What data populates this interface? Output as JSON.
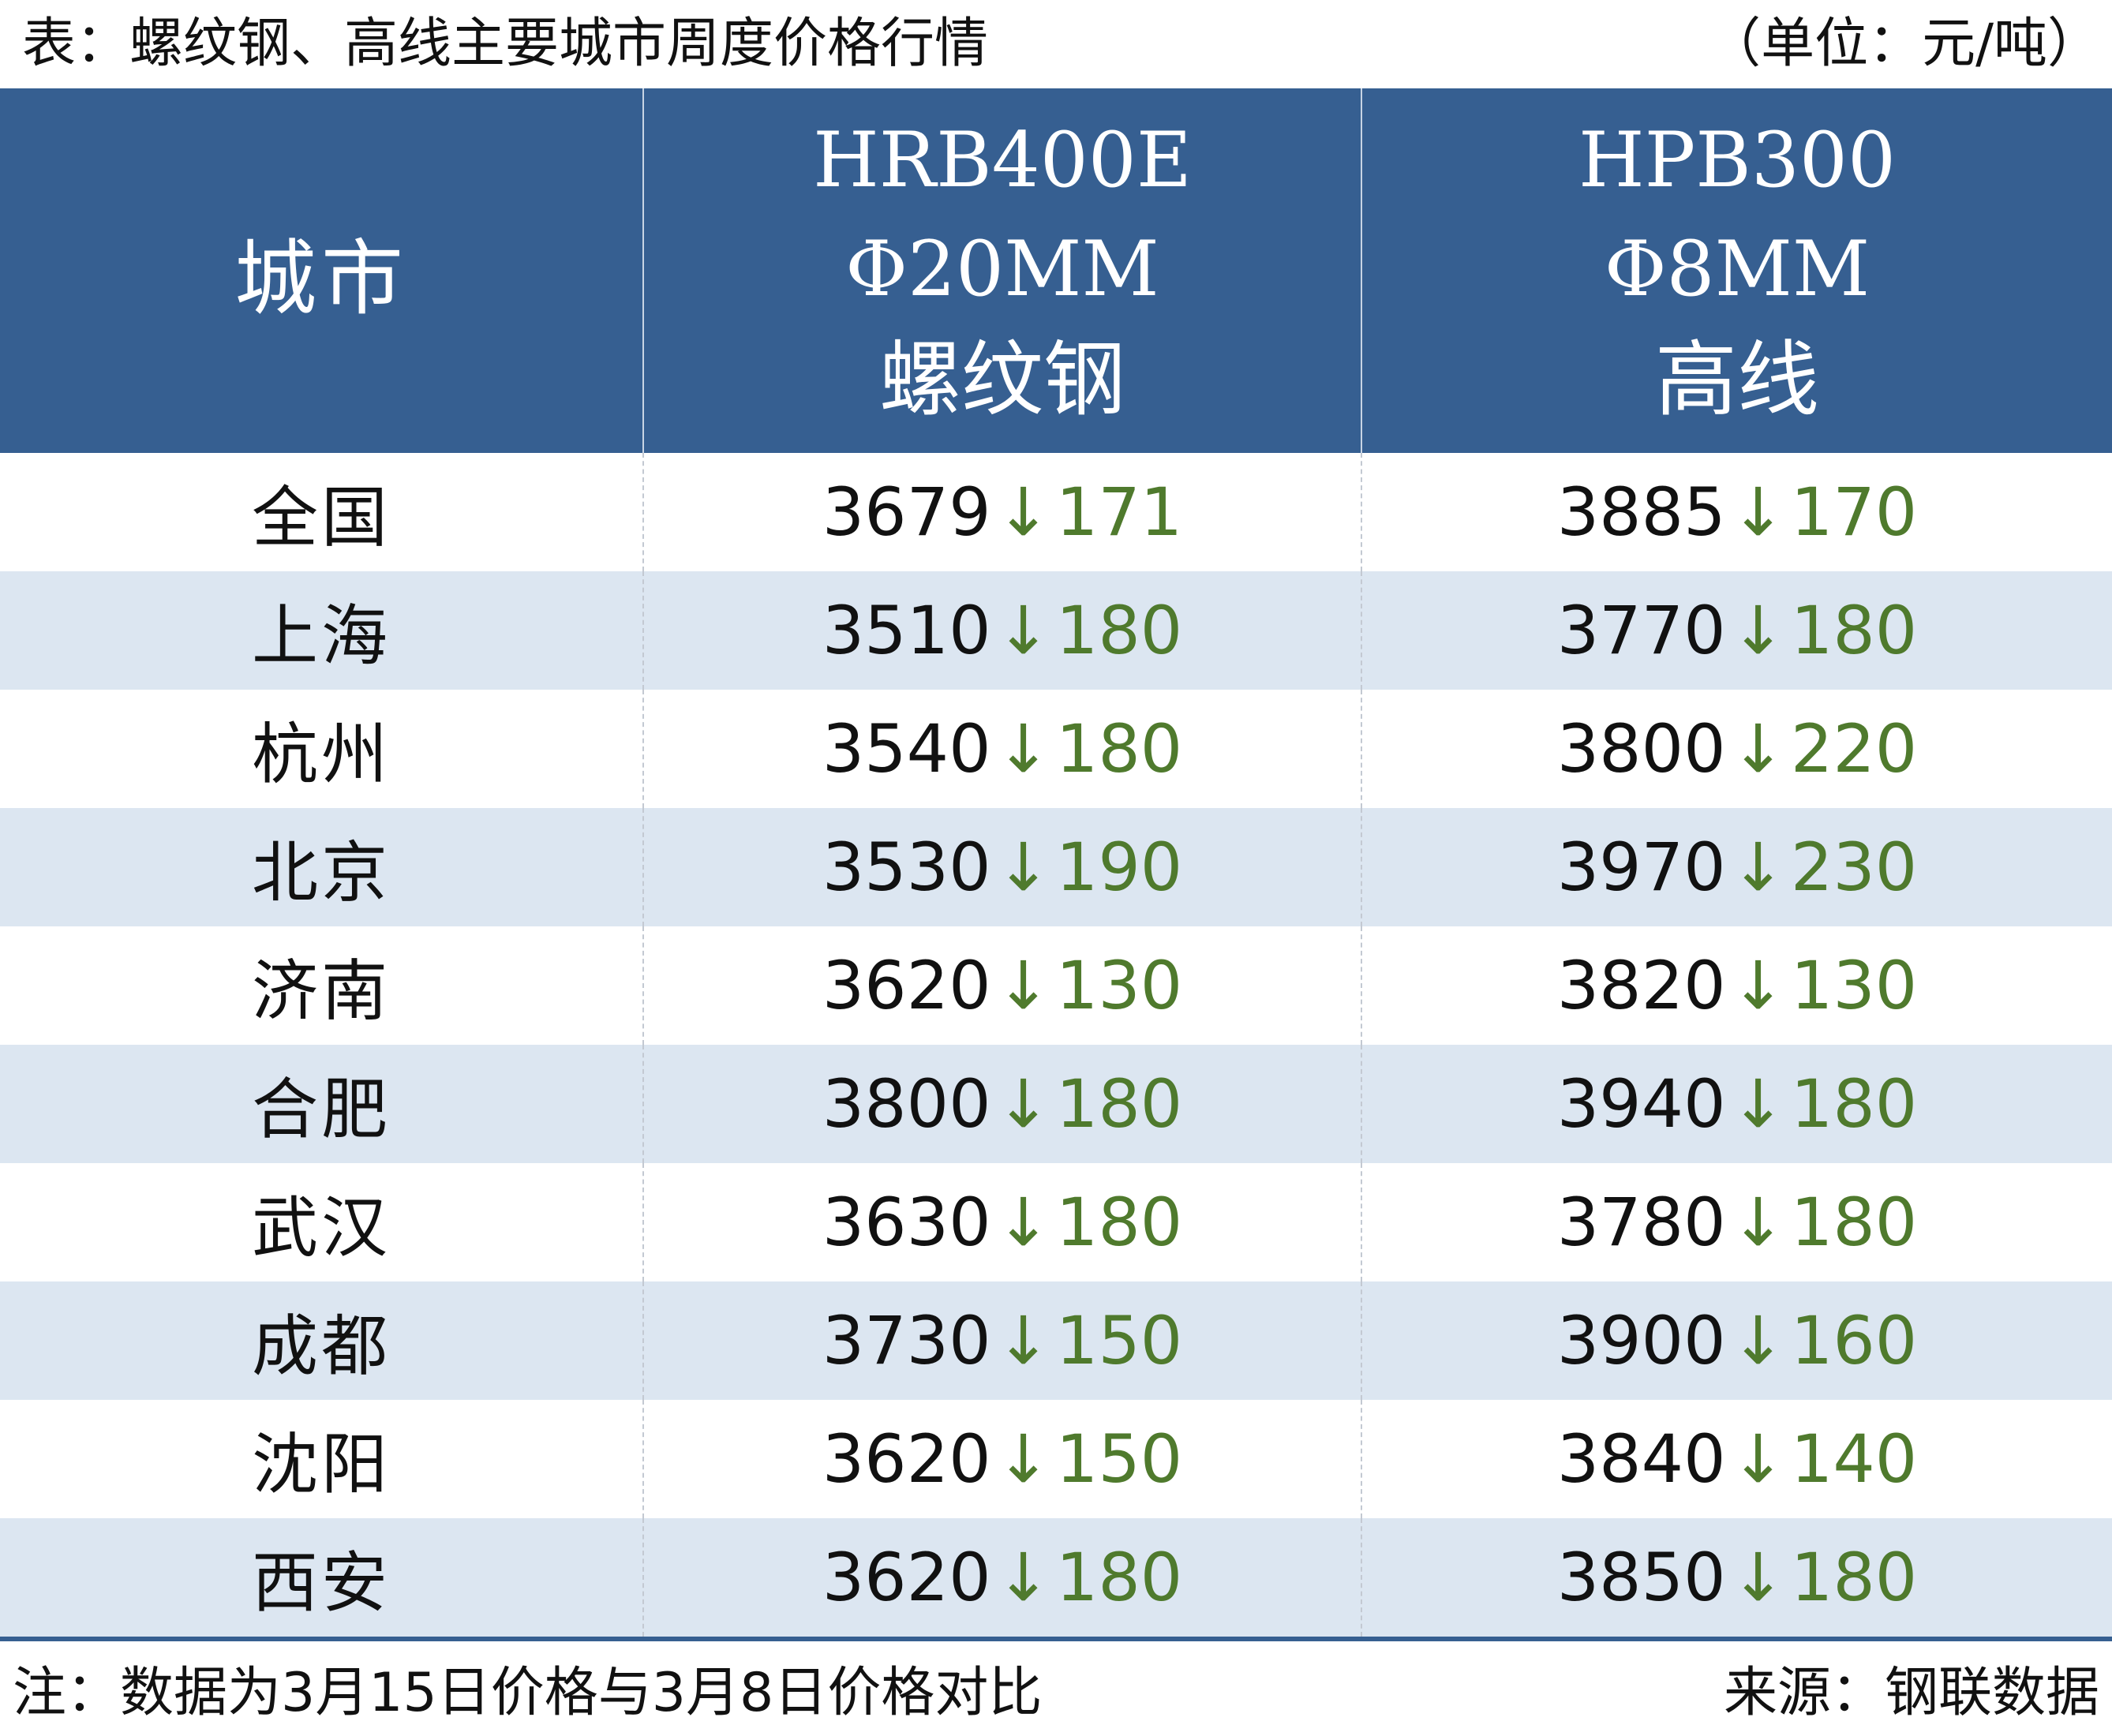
{
  "header": {
    "title": "表：螺纹钢、高线主要城市周度价格行情",
    "unit": "（单位：元/吨）"
  },
  "table": {
    "columns": {
      "city": "城市",
      "rebar": {
        "line1": "HRB400E",
        "line2": "Φ20MM",
        "line3": "螺纹钢"
      },
      "wire": {
        "line1": "HPB300",
        "line2": "Φ8MM",
        "line3": "高线"
      }
    },
    "arrow": "↓",
    "rows": [
      {
        "city": "全国",
        "rebar_price": "3679",
        "rebar_change": "171",
        "wire_price": "3885",
        "wire_change": "170"
      },
      {
        "city": "上海",
        "rebar_price": "3510",
        "rebar_change": "180",
        "wire_price": "3770",
        "wire_change": "180"
      },
      {
        "city": "杭州",
        "rebar_price": "3540",
        "rebar_change": "180",
        "wire_price": "3800",
        "wire_change": "220"
      },
      {
        "city": "北京",
        "rebar_price": "3530",
        "rebar_change": "190",
        "wire_price": "3970",
        "wire_change": "230"
      },
      {
        "city": "济南",
        "rebar_price": "3620",
        "rebar_change": "130",
        "wire_price": "3820",
        "wire_change": "130"
      },
      {
        "city": "合肥",
        "rebar_price": "3800",
        "rebar_change": "180",
        "wire_price": "3940",
        "wire_change": "180"
      },
      {
        "city": "武汉",
        "rebar_price": "3630",
        "rebar_change": "180",
        "wire_price": "3780",
        "wire_change": "180"
      },
      {
        "city": "成都",
        "rebar_price": "3730",
        "rebar_change": "150",
        "wire_price": "3900",
        "wire_change": "160"
      },
      {
        "city": "沈阳",
        "rebar_price": "3620",
        "rebar_change": "150",
        "wire_price": "3840",
        "wire_change": "140"
      },
      {
        "city": "西安",
        "rebar_price": "3620",
        "rebar_change": "180",
        "wire_price": "3850",
        "wire_change": "180"
      }
    ]
  },
  "footer": {
    "note": "注：数据为3月15日价格与3月8日价格对比",
    "source": "来源：钢联数据"
  },
  "colors": {
    "header_bg": "#365f91",
    "stripe_bg": "#dce6f1",
    "decrease_green": "#4f7a2d"
  }
}
